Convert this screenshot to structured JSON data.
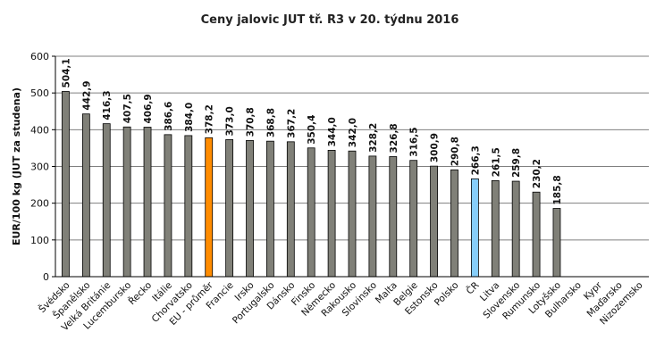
{
  "chart_data": {
    "type": "bar",
    "title": "Ceny jalovic JUT  tř. R3  v 20. týdnu 2016",
    "xlabel": "",
    "ylabel": "EUR/100 kg (JUT za studena)",
    "ylim": [
      0,
      600
    ],
    "yticks": [
      "0",
      "100",
      "200",
      "300",
      "400",
      "500",
      "600"
    ],
    "grid": true,
    "categories": [
      "Švédsko",
      "Španělsko",
      "Velká Británie",
      "Lucembursko",
      "Řecko",
      "Itálie",
      "Chorvatsko",
      "EU - průměr",
      "Francie",
      "Irsko",
      "Portugalsko",
      "Dánsko",
      "Finsko",
      "Německo",
      "Rakousko",
      "Slovinsko",
      "Malta",
      "Belgie",
      "Estonsko",
      "Polsko",
      "ČR",
      "Litva",
      "Slovensko",
      "Rumunsko",
      "Lotyšsko",
      "Bulharsko",
      "Kypr",
      "Maďarsko",
      "Nizozemsko"
    ],
    "values": [
      504.1,
      442.9,
      416.3,
      407.5,
      406.9,
      386.6,
      384.0,
      378.2,
      373.0,
      370.8,
      368.8,
      367.2,
      350.4,
      344.0,
      342.0,
      328.2,
      326.8,
      316.5,
      300.9,
      290.8,
      266.3,
      261.5,
      259.8,
      230.2,
      185.8,
      null,
      null,
      null,
      null
    ],
    "value_labels": [
      "504,1",
      "442,9",
      "416,3",
      "407,5",
      "406,9",
      "386,6",
      "384,0",
      "378,2",
      "373,0",
      "370,8",
      "368,8",
      "367,2",
      "350,4",
      "344,0",
      "342,0",
      "328,2",
      "326,8",
      "316,5",
      "300,9",
      "290,8",
      "266,3",
      "261,5",
      "259,8",
      "230,2",
      "185,8",
      "",
      "",
      "",
      ""
    ],
    "colors": {
      "default": "#808078",
      "highlight_eu": "#ff8c00",
      "highlight_cr": "#87cefa",
      "grid": "#7f7f7f"
    },
    "highlights": {
      "EU - průměr": "highlight_eu",
      "ČR": "highlight_cr"
    }
  }
}
